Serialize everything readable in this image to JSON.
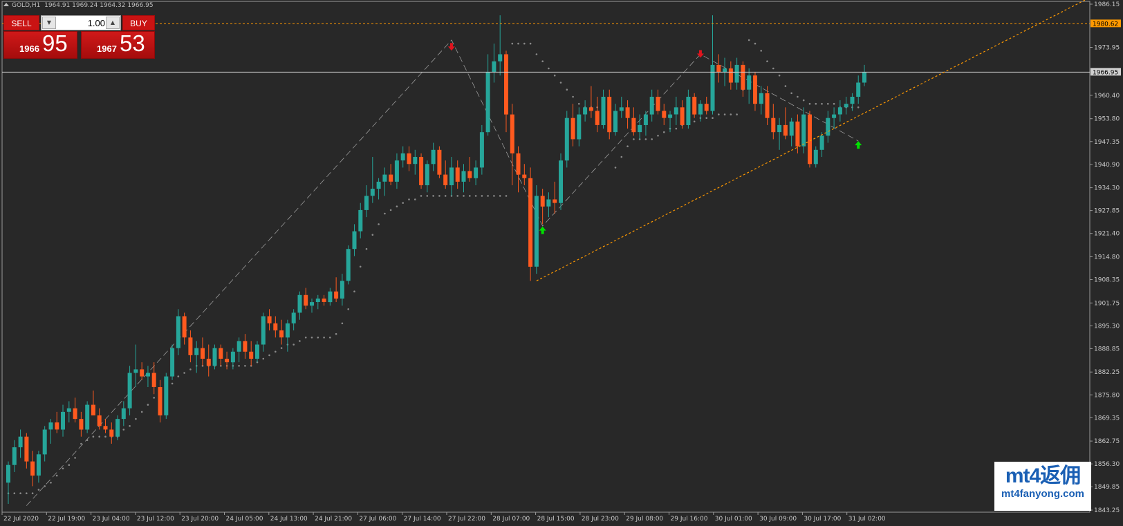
{
  "header": {
    "symbol": "GOLD,H1",
    "ohlc": "1964.91 1969.24 1964.32 1966.95"
  },
  "trade_panel": {
    "sell_label": "SELL",
    "buy_label": "BUY",
    "lot_value": "1.00",
    "sell_price_small": "1966",
    "sell_price_big": "95",
    "buy_price_small": "1967",
    "buy_price_big": "53"
  },
  "watermark": {
    "line1": "mt4返佣",
    "line2": "mt4fanyong.com"
  },
  "colors": {
    "background": "#282828",
    "bull": "#26a69a",
    "bear": "#ff5a1f",
    "grid_text": "#c8c8c8",
    "level_line": "#ff9900",
    "bid_line": "#cfcfcf",
    "sar_dot": "#8a8a8a",
    "arrow_up": "#00e000",
    "arrow_down": "#e0141e"
  },
  "chart_data": {
    "type": "candlestick",
    "symbol": "GOLD",
    "timeframe": "H1",
    "ylim": [
      1843.25,
      1986.15
    ],
    "y_ticks": [
      "1986.15",
      "1980.62",
      "1973.95",
      "1966.95",
      "1960.40",
      "1953.80",
      "1947.35",
      "1940.90",
      "1934.30",
      "1927.85",
      "1921.40",
      "1914.80",
      "1908.35",
      "1901.75",
      "1895.30",
      "1888.85",
      "1882.25",
      "1875.80",
      "1869.35",
      "1862.75",
      "1856.30",
      "1849.85",
      "1843.25"
    ],
    "x_labels": [
      "22 Jul 2020",
      "22 Jul 19:00",
      "23 Jul 04:00",
      "23 Jul 12:00",
      "23 Jul 20:00",
      "24 Jul 05:00",
      "24 Jul 13:00",
      "24 Jul 21:00",
      "27 Jul 06:00",
      "27 Jul 14:00",
      "27 Jul 22:00",
      "28 Jul 07:00",
      "28 Jul 15:00",
      "28 Jul 23:00",
      "29 Jul 08:00",
      "29 Jul 16:00",
      "30 Jul 01:00",
      "30 Jul 09:00",
      "30 Jul 17:00",
      "31 Jul 02:00"
    ],
    "current_price": 1966.95,
    "bid_price_label": "1966.95",
    "resistance_level": 1980.62,
    "resistance_label": "1980.62",
    "support_trendline": [
      [
        1908.0,
        1988.0
      ]
    ],
    "zigzag_pivots": [
      1844.5,
      1976.0,
      1923.5,
      1972.0,
      1947.5
    ],
    "candles": [
      [
        1851,
        1857,
        1845,
        1856
      ],
      [
        1856,
        1863,
        1854,
        1861
      ],
      [
        1861,
        1866,
        1858,
        1864
      ],
      [
        1864,
        1865,
        1855,
        1857
      ],
      [
        1857,
        1860,
        1850,
        1853
      ],
      [
        1853,
        1860,
        1851,
        1859
      ],
      [
        1859,
        1867,
        1857,
        1866
      ],
      [
        1866,
        1869,
        1862,
        1868
      ],
      [
        1868,
        1871,
        1865,
        1866
      ],
      [
        1866,
        1873,
        1864,
        1871
      ],
      [
        1871,
        1874,
        1868,
        1872
      ],
      [
        1872,
        1875,
        1868,
        1869
      ],
      [
        1869,
        1871,
        1864,
        1866
      ],
      [
        1866,
        1874,
        1865,
        1873
      ],
      [
        1873,
        1877,
        1870,
        1870
      ],
      [
        1870,
        1872,
        1866,
        1867
      ],
      [
        1867,
        1869,
        1865,
        1866
      ],
      [
        1866,
        1868,
        1862,
        1864
      ],
      [
        1864,
        1870,
        1863,
        1869
      ],
      [
        1869,
        1874,
        1867,
        1872
      ],
      [
        1872,
        1884,
        1870,
        1882
      ],
      [
        1882,
        1890,
        1878,
        1883
      ],
      [
        1883,
        1885,
        1880,
        1881
      ],
      [
        1881,
        1884,
        1878,
        1882
      ],
      [
        1882,
        1885,
        1876,
        1878
      ],
      [
        1878,
        1880,
        1868,
        1870
      ],
      [
        1870,
        1882,
        1869,
        1881
      ],
      [
        1881,
        1890,
        1880,
        1889
      ],
      [
        1889,
        1900,
        1887,
        1898
      ],
      [
        1898,
        1899,
        1890,
        1892
      ],
      [
        1892,
        1894,
        1885,
        1887
      ],
      [
        1887,
        1891,
        1882,
        1889
      ],
      [
        1889,
        1892,
        1884,
        1886
      ],
      [
        1886,
        1890,
        1881,
        1884
      ],
      [
        1884,
        1890,
        1883,
        1889
      ],
      [
        1889,
        1890,
        1884,
        1886
      ],
      [
        1886,
        1888,
        1883,
        1885
      ],
      [
        1885,
        1889,
        1883,
        1888
      ],
      [
        1888,
        1892,
        1885,
        1891
      ],
      [
        1891,
        1893,
        1886,
        1888
      ],
      [
        1888,
        1891,
        1884,
        1886
      ],
      [
        1886,
        1891,
        1885,
        1890
      ],
      [
        1890,
        1899,
        1888,
        1898
      ],
      [
        1898,
        1900,
        1894,
        1896
      ],
      [
        1896,
        1898,
        1892,
        1894
      ],
      [
        1894,
        1897,
        1890,
        1892
      ],
      [
        1892,
        1897,
        1888,
        1896
      ],
      [
        1896,
        1900,
        1894,
        1899
      ],
      [
        1899,
        1905,
        1897,
        1904
      ],
      [
        1904,
        1906,
        1900,
        1901
      ],
      [
        1901,
        1903,
        1899,
        1902
      ],
      [
        1902,
        1904,
        1900,
        1903
      ],
      [
        1903,
        1904,
        1901,
        1902
      ],
      [
        1902,
        1906,
        1901,
        1905
      ],
      [
        1905,
        1909,
        1902,
        1903
      ],
      [
        1903,
        1910,
        1901,
        1908
      ],
      [
        1908,
        1918,
        1907,
        1917
      ],
      [
        1917,
        1924,
        1915,
        1922
      ],
      [
        1922,
        1930,
        1920,
        1928
      ],
      [
        1928,
        1935,
        1926,
        1932
      ],
      [
        1932,
        1943,
        1930,
        1934
      ],
      [
        1934,
        1937,
        1931,
        1936
      ],
      [
        1936,
        1940,
        1932,
        1938
      ],
      [
        1938,
        1941,
        1935,
        1936
      ],
      [
        1936,
        1944,
        1934,
        1942
      ],
      [
        1942,
        1946,
        1940,
        1944
      ],
      [
        1944,
        1946,
        1939,
        1941
      ],
      [
        1941,
        1945,
        1938,
        1943
      ],
      [
        1943,
        1944,
        1934,
        1935
      ],
      [
        1935,
        1942,
        1933,
        1941
      ],
      [
        1941,
        1947,
        1939,
        1945
      ],
      [
        1945,
        1946,
        1937,
        1938
      ],
      [
        1938,
        1942,
        1934,
        1935
      ],
      [
        1935,
        1943,
        1932,
        1940
      ],
      [
        1940,
        1942,
        1934,
        1936
      ],
      [
        1936,
        1941,
        1933,
        1939
      ],
      [
        1939,
        1943,
        1936,
        1937
      ],
      [
        1937,
        1942,
        1935,
        1940
      ],
      [
        1940,
        1952,
        1938,
        1950
      ],
      [
        1950,
        1972,
        1949,
        1967
      ],
      [
        1967,
        1975,
        1964,
        1970
      ],
      [
        1970,
        1983,
        1966,
        1972
      ],
      [
        1972,
        1973,
        1950,
        1955
      ],
      [
        1955,
        1958,
        1935,
        1944
      ],
      [
        1944,
        1946,
        1933,
        1938
      ],
      [
        1938,
        1941,
        1935,
        1937
      ],
      [
        1937,
        1940,
        1908,
        1912
      ],
      [
        1912,
        1935,
        1910,
        1932
      ],
      [
        1932,
        1934,
        1924,
        1929
      ],
      [
        1929,
        1933,
        1926,
        1931
      ],
      [
        1931,
        1936,
        1927,
        1930
      ],
      [
        1930,
        1944,
        1928,
        1942
      ],
      [
        1942,
        1956,
        1940,
        1954
      ],
      [
        1954,
        1958,
        1946,
        1948
      ],
      [
        1948,
        1957,
        1946,
        1955
      ],
      [
        1955,
        1959,
        1953,
        1957
      ],
      [
        1957,
        1963,
        1954,
        1956
      ],
      [
        1956,
        1960,
        1950,
        1952
      ],
      [
        1952,
        1962,
        1951,
        1960
      ],
      [
        1960,
        1962,
        1948,
        1950
      ],
      [
        1950,
        1958,
        1949,
        1956
      ],
      [
        1956,
        1960,
        1954,
        1957
      ],
      [
        1957,
        1959,
        1951,
        1954
      ],
      [
        1954,
        1957,
        1949,
        1950
      ],
      [
        1950,
        1955,
        1948,
        1952
      ],
      [
        1952,
        1956,
        1949,
        1955
      ],
      [
        1955,
        1962,
        1953,
        1960
      ],
      [
        1960,
        1962,
        1955,
        1956
      ],
      [
        1956,
        1958,
        1952,
        1954
      ],
      [
        1954,
        1956,
        1950,
        1955
      ],
      [
        1955,
        1960,
        1952,
        1957
      ],
      [
        1957,
        1959,
        1951,
        1952
      ],
      [
        1952,
        1962,
        1951,
        1960
      ],
      [
        1960,
        1961,
        1954,
        1955
      ],
      [
        1955,
        1959,
        1953,
        1958
      ],
      [
        1958,
        1960,
        1955,
        1956
      ],
      [
        1956,
        1983,
        1955,
        1969
      ],
      [
        1969,
        1972,
        1964,
        1967
      ],
      [
        1967,
        1971,
        1963,
        1968
      ],
      [
        1968,
        1970,
        1962,
        1964
      ],
      [
        1964,
        1971,
        1962,
        1969
      ],
      [
        1969,
        1970,
        1960,
        1962
      ],
      [
        1962,
        1968,
        1958,
        1966
      ],
      [
        1966,
        1967,
        1956,
        1958
      ],
      [
        1958,
        1963,
        1955,
        1961
      ],
      [
        1961,
        1963,
        1952,
        1954
      ],
      [
        1954,
        1958,
        1948,
        1950
      ],
      [
        1950,
        1954,
        1945,
        1952
      ],
      [
        1952,
        1957,
        1948,
        1949
      ],
      [
        1949,
        1954,
        1946,
        1953
      ],
      [
        1953,
        1955,
        1944,
        1946
      ],
      [
        1946,
        1957,
        1944,
        1955
      ],
      [
        1955,
        1956,
        1940,
        1941
      ],
      [
        1941,
        1946,
        1940,
        1945
      ],
      [
        1945,
        1950,
        1943,
        1949
      ],
      [
        1949,
        1956,
        1947,
        1954
      ],
      [
        1954,
        1957,
        1951,
        1955
      ],
      [
        1955,
        1959,
        1953,
        1957
      ],
      [
        1957,
        1960,
        1955,
        1958
      ],
      [
        1958,
        1961,
        1956,
        1960
      ],
      [
        1960,
        1966,
        1958,
        1964
      ],
      [
        1964,
        1969,
        1963,
        1967
      ]
    ],
    "sar_dots": [
      1848,
      1848,
      1848,
      1848,
      1848,
      1849,
      1850,
      1851,
      1853,
      1855,
      1856,
      1858,
      1862,
      1863,
      1864,
      1864,
      1864,
      1864,
      1864,
      1866,
      1867,
      1869,
      1871,
      1873,
      1875,
      1876,
      1877,
      1879,
      1881,
      1882,
      1883,
      1884,
      1884,
      1884,
      1884,
      1884,
      1884,
      1884,
      1884,
      1884,
      1884,
      1885,
      1886,
      1887,
      1888,
      1889,
      1890,
      1890,
      1891,
      1892,
      1892,
      1892,
      1892,
      1892,
      1893,
      1896,
      1900,
      1905,
      1912,
      1917,
      1921,
      1924,
      1927,
      1928,
      1929,
      1930,
      1931,
      1931,
      1932,
      1932,
      1932,
      1932,
      1932,
      1932,
      1932,
      1932,
      1932,
      1932,
      1932,
      1932,
      1932,
      1932,
      1932,
      1975,
      1975,
      1975,
      1975,
      1972,
      1970,
      1968,
      1966,
      1964,
      1962,
      1960,
      1958,
      1957,
      1957,
      1957,
      1957,
      1957,
      1940,
      1943,
      1946,
      1948,
      1948,
      1948,
      1948,
      1949,
      1950,
      1951,
      1951,
      1952,
      1953,
      1953,
      1954,
      1954,
      1954,
      1955,
      1955,
      1955,
      1955,
      1962,
      1976,
      1975,
      1973,
      1970,
      1968,
      1966,
      1963,
      1961,
      1960,
      1959,
      1958,
      1958,
      1958,
      1958,
      1958,
      1957,
      1957,
      1957,
      1957
    ],
    "grid": false,
    "legend": "none"
  }
}
